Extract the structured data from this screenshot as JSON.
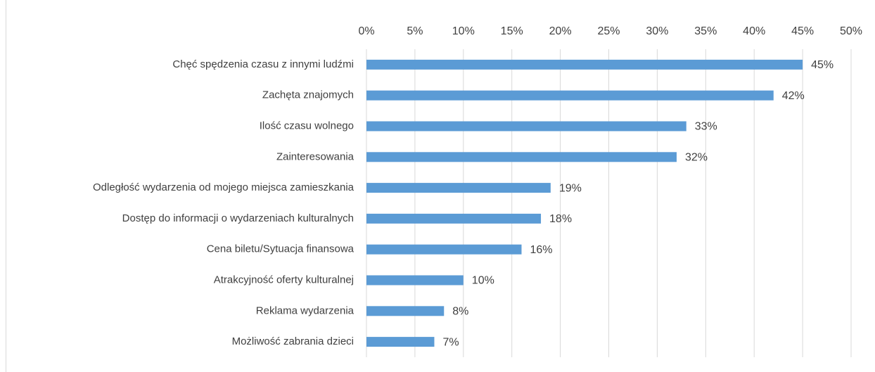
{
  "chart_data": {
    "type": "bar",
    "horizontal": true,
    "categories": [
      "Chęć spędzenia czasu z innymi ludźmi",
      "Zachęta znajomych",
      "Ilość czasu wolnego",
      "Zainteresowania",
      "Odległość wydarzenia od mojego miejsca zamieszkania",
      "Dostęp do informacji o wydarzeniach kulturalnych",
      "Cena biletu/Sytuacja finansowa",
      "Atrakcyjność oferty kulturalnej",
      "Reklama wydarzenia",
      "Możliwość zabrania dzieci"
    ],
    "values": [
      45,
      42,
      33,
      32,
      19,
      18,
      16,
      10,
      8,
      7
    ],
    "value_labels": [
      "45%",
      "42%",
      "33%",
      "32%",
      "19%",
      "18%",
      "16%",
      "10%",
      "8%",
      "7%"
    ],
    "color": "#5b9bd5",
    "xlim": [
      0,
      50
    ],
    "xticks": [
      {
        "value": 0,
        "label": "0%"
      },
      {
        "value": 5,
        "label": "5%"
      },
      {
        "value": 10,
        "label": "10%"
      },
      {
        "value": 15,
        "label": "15%"
      },
      {
        "value": 20,
        "label": "20%"
      },
      {
        "value": 25,
        "label": "25%"
      },
      {
        "value": 30,
        "label": "30%"
      },
      {
        "value": 35,
        "label": "35%"
      },
      {
        "value": 40,
        "label": "40%"
      },
      {
        "value": 45,
        "label": "45%"
      },
      {
        "value": 50,
        "label": "50%"
      }
    ],
    "grid": true
  }
}
